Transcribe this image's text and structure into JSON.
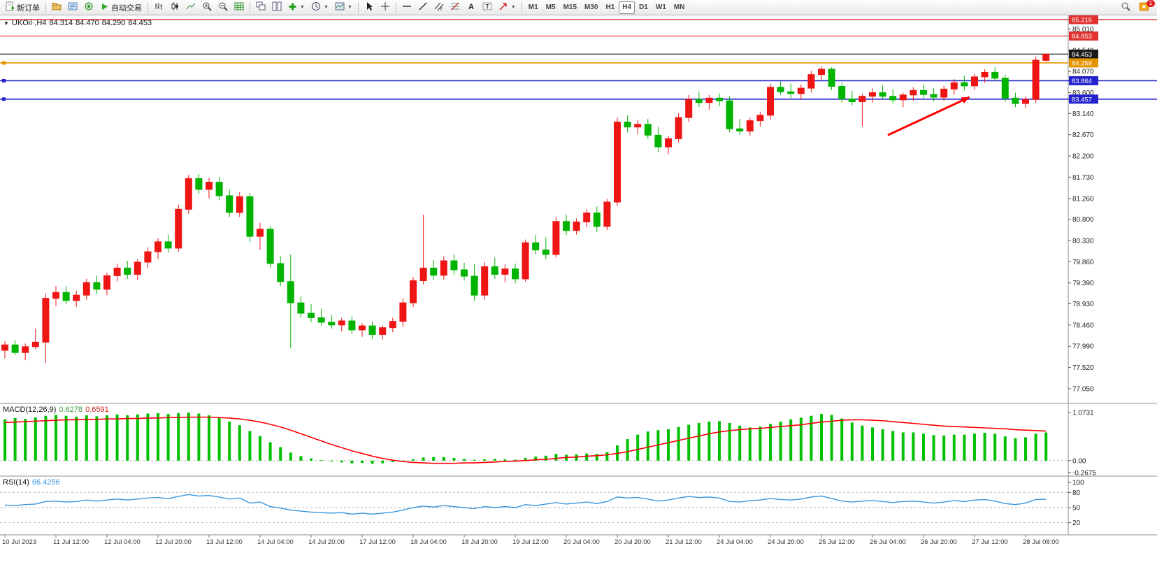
{
  "toolbar": {
    "new_order_label": "新订单",
    "autotrading_label": "自动交易",
    "timeframes": [
      "M1",
      "M5",
      "M15",
      "M30",
      "H1",
      "H4",
      "D1",
      "W1",
      "MN"
    ],
    "active_timeframe": "H4",
    "notification_count": "1"
  },
  "chart_data": {
    "type": "candlestick",
    "symbol": "UKOil",
    "timeframe": "H4",
    "legend": {
      "symbol_period": "UKOil·,H4",
      "open": "84.314",
      "high": "84.470",
      "low": "84.290",
      "close": "84.453"
    },
    "colors": {
      "bull": "#ee1515",
      "bear": "#00b400",
      "macd_histogram": "#00c000",
      "macd_signal": "#ff0000",
      "rsi_line": "#3a96dd",
      "line_blue": "#2424cc",
      "line_red": "#dd2222",
      "line_orange": "#e59400",
      "price_line": "#1a1a1a",
      "arrow": "#ff0000"
    },
    "price_axis": {
      "ticks": [
        "85.010",
        "84.540",
        "84.070",
        "83.600",
        "83.140",
        "82.670",
        "82.200",
        "81.730",
        "81.260",
        "80.800",
        "80.330",
        "79.860",
        "79.390",
        "78.930",
        "78.460",
        "77.990",
        "77.520",
        "77.050"
      ],
      "badges": [
        {
          "text": "85.216",
          "color": "#e03030"
        },
        {
          "text": "84.853",
          "color": "#e03030"
        },
        {
          "text": "84.453",
          "color": "#1a1a1a"
        },
        {
          "text": "84.259",
          "color": "#e59400"
        },
        {
          "text": "83.864",
          "color": "#2424cc"
        },
        {
          "text": "83.457",
          "color": "#2424cc"
        }
      ]
    },
    "hlines": [
      {
        "price": 85.216,
        "color": "#dd2222",
        "width": 1.4,
        "full_width": true,
        "handle": false
      },
      {
        "price": 84.853,
        "color": "#dd2222",
        "width": 1.2,
        "full_width": false,
        "handle": false
      },
      {
        "price": 84.453,
        "color": "#1a1a1a",
        "width": 1.2,
        "full_width": false,
        "handle": false
      },
      {
        "price": 84.259,
        "color": "#e59400",
        "width": 1.6,
        "full_width": false,
        "handle": true
      },
      {
        "price": 83.864,
        "color": "#2424cc",
        "width": 1.6,
        "full_width": true,
        "handle": true
      },
      {
        "price": 83.457,
        "color": "#2424cc",
        "width": 1.6,
        "full_width": true,
        "handle": true
      }
    ],
    "trend_arrow": {
      "from_bar": 86.5,
      "from_price": 82.66,
      "to_bar": 94.5,
      "to_price": 83.5
    },
    "time_axis": {
      "every": 5,
      "labels": [
        "10 Jul 2023",
        "11 Jul 12:00",
        "12 Jul 04:00",
        "12 Jul 20:00",
        "13 Jul 12:00",
        "14 Jul 04:00",
        "14 Jul 20:00",
        "17 Jul 12:00",
        "18 Jul 04:00",
        "18 Jul 20:00",
        "19 Jul 12:00",
        "20 Jul 04:00",
        "20 Jul 20:00",
        "21 Jul 12:00",
        "24 Jul 04:00",
        "24 Jul 20:00",
        "25 Jul 12:00",
        "26 Jul 04:00",
        "26 Jul 20:00",
        "27 Jul 12:00",
        "28 Jul 08:00"
      ]
    },
    "candles": [
      [
        77.9,
        78.1,
        77.72,
        78.02
      ],
      [
        78.02,
        78.12,
        77.8,
        77.85
      ],
      [
        77.85,
        78.05,
        77.68,
        77.98
      ],
      [
        77.98,
        78.38,
        77.92,
        78.08
      ],
      [
        78.08,
        79.15,
        77.62,
        79.05
      ],
      [
        79.05,
        79.32,
        78.88,
        79.18
      ],
      [
        79.18,
        79.32,
        78.92,
        79.0
      ],
      [
        79.0,
        79.22,
        78.86,
        79.12
      ],
      [
        79.12,
        79.48,
        79.02,
        79.4
      ],
      [
        79.4,
        79.55,
        79.15,
        79.25
      ],
      [
        79.25,
        79.62,
        79.12,
        79.55
      ],
      [
        79.55,
        79.82,
        79.42,
        79.72
      ],
      [
        79.72,
        79.88,
        79.48,
        79.58
      ],
      [
        79.58,
        79.92,
        79.46,
        79.85
      ],
      [
        79.85,
        80.18,
        79.72,
        80.08
      ],
      [
        80.08,
        80.38,
        79.92,
        80.3
      ],
      [
        80.3,
        80.46,
        80.06,
        80.16
      ],
      [
        80.16,
        81.12,
        80.08,
        81.02
      ],
      [
        81.02,
        81.78,
        80.92,
        81.7
      ],
      [
        81.7,
        81.8,
        81.36,
        81.46
      ],
      [
        81.46,
        81.72,
        81.26,
        81.62
      ],
      [
        81.62,
        81.74,
        81.22,
        81.32
      ],
      [
        81.32,
        81.45,
        80.85,
        80.95
      ],
      [
        80.95,
        81.4,
        80.85,
        81.3
      ],
      [
        81.3,
        81.38,
        80.3,
        80.42
      ],
      [
        80.42,
        80.72,
        80.12,
        80.58
      ],
      [
        80.58,
        80.65,
        79.72,
        79.82
      ],
      [
        79.82,
        79.98,
        79.32,
        79.42
      ],
      [
        79.42,
        80.02,
        77.95,
        78.95
      ],
      [
        78.95,
        79.1,
        78.62,
        78.72
      ],
      [
        78.72,
        78.92,
        78.52,
        78.62
      ],
      [
        78.62,
        78.82,
        78.44,
        78.52
      ],
      [
        78.52,
        78.68,
        78.38,
        78.46
      ],
      [
        78.46,
        78.62,
        78.32,
        78.55
      ],
      [
        78.55,
        78.65,
        78.26,
        78.35
      ],
      [
        78.35,
        78.5,
        78.2,
        78.44
      ],
      [
        78.44,
        78.54,
        78.16,
        78.25
      ],
      [
        78.25,
        78.45,
        78.14,
        78.4
      ],
      [
        78.4,
        78.62,
        78.3,
        78.54
      ],
      [
        78.54,
        79.05,
        78.42,
        78.95
      ],
      [
        78.95,
        79.52,
        78.86,
        79.44
      ],
      [
        79.44,
        80.9,
        79.36,
        79.72
      ],
      [
        79.72,
        79.9,
        79.46,
        79.56
      ],
      [
        79.56,
        79.98,
        79.46,
        79.88
      ],
      [
        79.88,
        80.02,
        79.58,
        79.68
      ],
      [
        79.68,
        79.84,
        79.44,
        79.54
      ],
      [
        79.54,
        79.8,
        79.0,
        79.12
      ],
      [
        79.12,
        79.85,
        79.02,
        79.75
      ],
      [
        79.75,
        79.95,
        79.48,
        79.58
      ],
      [
        79.58,
        79.8,
        79.4,
        79.7
      ],
      [
        79.7,
        79.82,
        79.38,
        79.48
      ],
      [
        79.48,
        80.35,
        79.42,
        80.28
      ],
      [
        80.28,
        80.45,
        80.02,
        80.12
      ],
      [
        80.12,
        80.4,
        79.92,
        80.02
      ],
      [
        80.02,
        80.85,
        79.95,
        80.75
      ],
      [
        80.75,
        80.9,
        80.45,
        80.55
      ],
      [
        80.55,
        80.82,
        80.46,
        80.74
      ],
      [
        80.74,
        81.02,
        80.62,
        80.94
      ],
      [
        80.94,
        81.08,
        80.52,
        80.64
      ],
      [
        80.64,
        81.25,
        80.56,
        81.18
      ],
      [
        81.18,
        83.05,
        81.1,
        82.95
      ],
      [
        82.95,
        83.1,
        82.72,
        82.84
      ],
      [
        82.84,
        83.0,
        82.68,
        82.9
      ],
      [
        82.9,
        83.02,
        82.58,
        82.66
      ],
      [
        82.66,
        82.84,
        82.28,
        82.4
      ],
      [
        82.4,
        82.65,
        82.24,
        82.58
      ],
      [
        82.58,
        83.15,
        82.5,
        83.05
      ],
      [
        83.05,
        83.55,
        82.95,
        83.45
      ],
      [
        83.45,
        83.62,
        83.28,
        83.38
      ],
      [
        83.38,
        83.55,
        83.22,
        83.48
      ],
      [
        83.48,
        83.58,
        83.3,
        83.42
      ],
      [
        83.42,
        83.52,
        82.72,
        82.8
      ],
      [
        82.8,
        83.02,
        82.67,
        82.75
      ],
      [
        82.75,
        83.05,
        82.65,
        82.98
      ],
      [
        82.98,
        83.18,
        82.85,
        83.1
      ],
      [
        83.1,
        83.8,
        83.0,
        83.72
      ],
      [
        83.72,
        83.85,
        83.55,
        83.62
      ],
      [
        83.62,
        83.8,
        83.48,
        83.58
      ],
      [
        83.58,
        83.78,
        83.45,
        83.7
      ],
      [
        83.7,
        84.08,
        83.6,
        84.0
      ],
      [
        84.0,
        84.18,
        83.88,
        84.12
      ],
      [
        84.12,
        84.16,
        83.66,
        83.74
      ],
      [
        83.74,
        83.82,
        83.38,
        83.46
      ],
      [
        83.46,
        83.64,
        83.32,
        83.4
      ],
      [
        83.4,
        83.58,
        82.85,
        83.52
      ],
      [
        83.52,
        83.7,
        83.38,
        83.6
      ],
      [
        83.6,
        83.76,
        83.46,
        83.52
      ],
      [
        83.52,
        83.68,
        83.36,
        83.44
      ],
      [
        83.44,
        83.6,
        83.28,
        83.55
      ],
      [
        83.55,
        83.72,
        83.42,
        83.65
      ],
      [
        83.65,
        83.78,
        83.48,
        83.56
      ],
      [
        83.56,
        83.7,
        83.4,
        83.5
      ],
      [
        83.5,
        83.75,
        83.42,
        83.68
      ],
      [
        83.68,
        83.9,
        83.55,
        83.82
      ],
      [
        83.82,
        83.98,
        83.65,
        83.75
      ],
      [
        83.75,
        84.02,
        83.66,
        83.95
      ],
      [
        83.95,
        84.12,
        83.82,
        84.05
      ],
      [
        84.05,
        84.16,
        83.85,
        83.92
      ],
      [
        83.92,
        84.0,
        83.4,
        83.48
      ],
      [
        83.48,
        83.6,
        83.28,
        83.36
      ],
      [
        83.36,
        83.52,
        83.26,
        83.45
      ],
      [
        83.45,
        84.4,
        83.38,
        84.32
      ],
      [
        84.314,
        84.47,
        84.29,
        84.453
      ]
    ],
    "macd": {
      "label": "MACD(12,26,9)",
      "value_main": "0.6278",
      "value_signal": "0.6591",
      "axis": [
        "1.0731",
        "0.00",
        "-0.2675"
      ],
      "range": [
        -0.2675,
        1.0731
      ],
      "histogram": [
        0.92,
        0.95,
        0.93,
        0.96,
        1.0,
        1.02,
        1.0,
        0.98,
        1.01,
        0.99,
        1.01,
        1.03,
        1.01,
        1.03,
        1.05,
        1.06,
        1.04,
        1.06,
        1.07,
        1.05,
        1.01,
        0.95,
        0.87,
        0.79,
        0.66,
        0.55,
        0.41,
        0.3,
        0.18,
        0.1,
        0.05,
        0.01,
        -0.02,
        -0.04,
        -0.06,
        -0.05,
        -0.07,
        -0.06,
        -0.03,
        0.0,
        0.03,
        0.07,
        0.08,
        0.08,
        0.06,
        0.04,
        0.02,
        0.03,
        0.04,
        0.03,
        0.02,
        0.06,
        0.09,
        0.11,
        0.15,
        0.13,
        0.14,
        0.16,
        0.15,
        0.19,
        0.34,
        0.48,
        0.58,
        0.65,
        0.68,
        0.7,
        0.75,
        0.8,
        0.84,
        0.87,
        0.88,
        0.84,
        0.78,
        0.74,
        0.76,
        0.82,
        0.87,
        0.92,
        0.96,
        1.0,
        1.04,
        1.02,
        0.94,
        0.85,
        0.78,
        0.74,
        0.7,
        0.66,
        0.63,
        0.63,
        0.6,
        0.57,
        0.56,
        0.58,
        0.58,
        0.6,
        0.62,
        0.6,
        0.54,
        0.5,
        0.52,
        0.6,
        0.6278
      ],
      "signal": [
        0.85,
        0.86,
        0.87,
        0.88,
        0.89,
        0.9,
        0.91,
        0.91,
        0.92,
        0.92,
        0.93,
        0.93,
        0.94,
        0.94,
        0.95,
        0.95,
        0.96,
        0.96,
        0.97,
        0.97,
        0.97,
        0.96,
        0.95,
        0.93,
        0.9,
        0.86,
        0.81,
        0.75,
        0.68,
        0.6,
        0.52,
        0.44,
        0.36,
        0.29,
        0.22,
        0.16,
        0.1,
        0.05,
        0.01,
        -0.02,
        -0.04,
        -0.05,
        -0.06,
        -0.06,
        -0.06,
        -0.05,
        -0.05,
        -0.04,
        -0.03,
        -0.02,
        -0.01,
        0.0,
        0.02,
        0.03,
        0.05,
        0.07,
        0.08,
        0.1,
        0.11,
        0.13,
        0.16,
        0.2,
        0.25,
        0.3,
        0.35,
        0.4,
        0.45,
        0.5,
        0.55,
        0.6,
        0.64,
        0.67,
        0.69,
        0.71,
        0.72,
        0.74,
        0.76,
        0.78,
        0.8,
        0.83,
        0.86,
        0.88,
        0.9,
        0.91,
        0.91,
        0.9,
        0.89,
        0.87,
        0.85,
        0.83,
        0.81,
        0.79,
        0.77,
        0.76,
        0.75,
        0.74,
        0.73,
        0.72,
        0.71,
        0.69,
        0.68,
        0.67,
        0.6591
      ]
    },
    "rsi": {
      "label": "RSI(14)",
      "value": "66.4256",
      "axis": [
        "100",
        "80",
        "50",
        "20"
      ],
      "levels": [
        80,
        50,
        20
      ],
      "range": [
        0,
        100
      ],
      "values": [
        55,
        54,
        56,
        57,
        62,
        63,
        61,
        62,
        65,
        63,
        65,
        67,
        65,
        67,
        69,
        70,
        68,
        72,
        76,
        73,
        74,
        71,
        67,
        69,
        59,
        61,
        52,
        49,
        45,
        43,
        41,
        40,
        39,
        40,
        37,
        39,
        37,
        39,
        41,
        45,
        50,
        53,
        51,
        54,
        52,
        50,
        48,
        52,
        50,
        52,
        50,
        56,
        54,
        57,
        60,
        57,
        59,
        61,
        58,
        62,
        71,
        69,
        70,
        67,
        63,
        65,
        69,
        72,
        70,
        71,
        69,
        62,
        61,
        64,
        65,
        68,
        66,
        65,
        67,
        71,
        73,
        68,
        63,
        61,
        63,
        64,
        62,
        60,
        62,
        63,
        61,
        59,
        61,
        64,
        62,
        65,
        66,
        63,
        58,
        56,
        59,
        66,
        66.43
      ]
    }
  }
}
